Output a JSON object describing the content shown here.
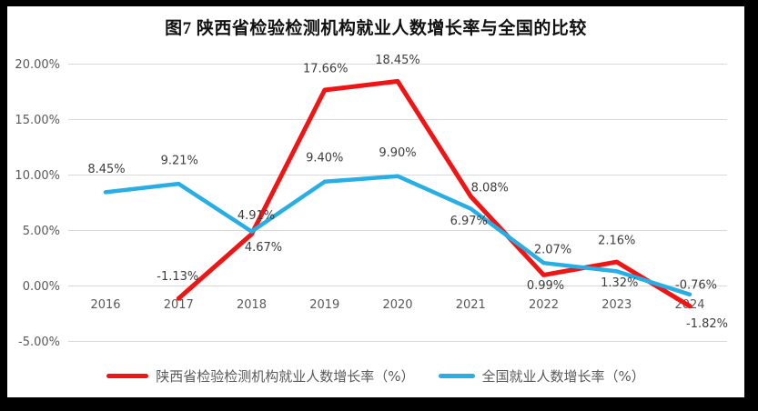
{
  "frame": {
    "border_color": "#000000",
    "canvas_color": "#ffffff"
  },
  "chart_data": {
    "type": "line",
    "title": "图7 陕西省检验检测机构就业人数增长率与全国的比较",
    "x": [
      "2016",
      "2017",
      "2018",
      "2019",
      "2020",
      "2021",
      "2022",
      "2023",
      "2024"
    ],
    "xlabel": "",
    "ylabel": "",
    "ylim": [
      -5,
      20
    ],
    "yticks": [
      20,
      15,
      10,
      5,
      0,
      -5
    ],
    "ytick_labels": [
      "20.00%",
      "15.00%",
      "10.00%",
      "5.00%",
      "0.00%",
      "-5.00%"
    ],
    "grid": true,
    "legend_position": "bottom",
    "gridline_color": "#d9d9d9",
    "series": [
      {
        "name": "陕西省检验检测机构就业人数增长率（%）",
        "color": "#f01414",
        "values": [
          null,
          -1.13,
          4.67,
          17.66,
          18.45,
          8.08,
          0.99,
          2.16,
          -1.82
        ],
        "point_labels": [
          null,
          "-1.13%",
          "4.67%",
          "17.66%",
          "18.45%",
          "8.08%",
          "0.99%",
          "2.16%",
          "-1.82%"
        ],
        "label_offsets": [
          null,
          [
            -1,
            -25
          ],
          [
            13,
            14
          ],
          [
            1,
            -24
          ],
          [
            0,
            -24
          ],
          [
            21,
            -10
          ],
          [
            2,
            11
          ],
          [
            0,
            -24
          ],
          [
            19,
            19
          ]
        ]
      },
      {
        "name": "全国就业人数增长率（%）",
        "color": "#27aee4",
        "values": [
          8.45,
          9.21,
          4.91,
          9.4,
          9.9,
          6.97,
          2.07,
          1.32,
          -0.76
        ],
        "point_labels": [
          "8.45%",
          "9.21%",
          "4.91%",
          "9.40%",
          "9.90%",
          "6.97%",
          "2.07%",
          "1.32%",
          "-0.76%"
        ],
        "label_offsets": [
          [
            1,
            -26
          ],
          [
            1,
            -26
          ],
          [
            5,
            -18
          ],
          [
            0,
            -27
          ],
          [
            0,
            -26
          ],
          [
            -2,
            13
          ],
          [
            10,
            -15
          ],
          [
            3,
            12
          ],
          [
            7,
            -11
          ]
        ]
      }
    ]
  }
}
